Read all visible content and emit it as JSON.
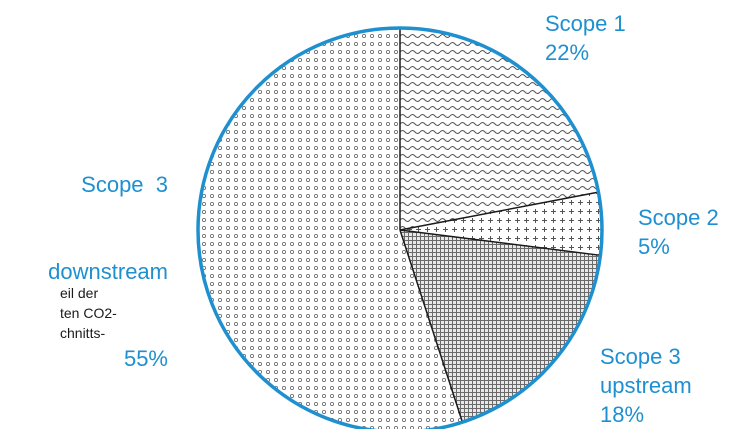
{
  "chart_data": {
    "type": "pie",
    "title": "",
    "start_angle_deg": 0,
    "direction": "clockwise",
    "slices": [
      {
        "label": "Scope 1",
        "value": 22,
        "display": "22%",
        "pattern": "waves"
      },
      {
        "label": "Scope 2",
        "value": 5,
        "display": "5%",
        "pattern": "plus"
      },
      {
        "label": "Scope 3 upstream",
        "value": 18,
        "display": "18%",
        "pattern": "crosshatch"
      },
      {
        "label": "Scope 3 downstream",
        "value": 55,
        "display": "55%",
        "pattern": "circles"
      }
    ],
    "legend": "none",
    "colors": {
      "outline": "#1e90d0",
      "label": "#1e90d0",
      "divider": "#1a1a1a",
      "pattern": "#555555"
    }
  },
  "labels": {
    "scope1": {
      "line1": "Scope 1",
      "line2": "22%"
    },
    "scope2": {
      "line1": "Scope 2",
      "line2": "5%"
    },
    "scope3_up": {
      "line1": "Scope 3",
      "line2": "upstream",
      "line3": "18%"
    },
    "scope3_down": {
      "line1": "Scope  3",
      "line2": "downstream",
      "line3": "55%"
    }
  },
  "side_text": {
    "line1": "eil der",
    "line2": "ten CO2-",
    "line3": "chnitts-"
  }
}
